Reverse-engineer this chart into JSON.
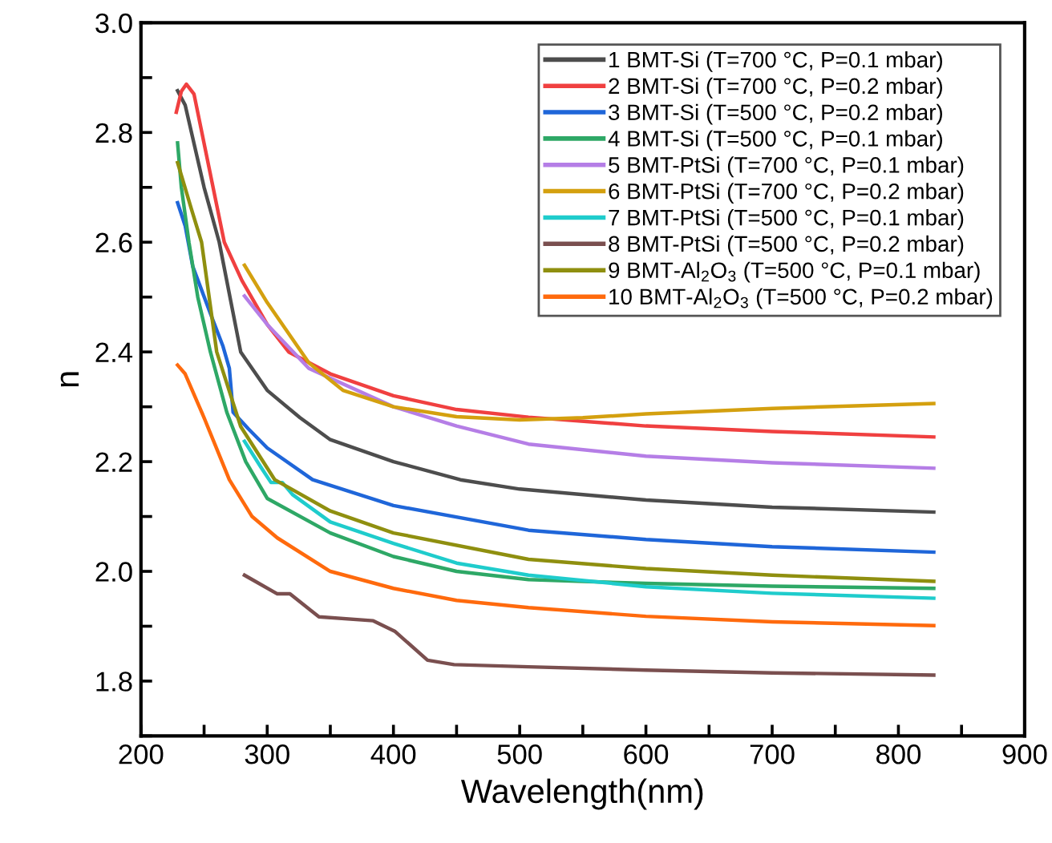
{
  "chart_data": {
    "type": "line",
    "xlabel": "Wavelength(nm)",
    "ylabel": "n",
    "xlim": [
      200,
      900
    ],
    "ylim": [
      1.7,
      3.0
    ],
    "xticks": [
      200,
      {
        "value": 250,
        "label": null
      },
      300,
      {
        "value": 350,
        "label": null
      },
      400,
      {
        "value": 450,
        "label": null
      },
      500,
      {
        "value": 550,
        "label": null
      },
      600,
      {
        "value": 650,
        "label": null
      },
      700,
      {
        "value": 750,
        "label": null
      },
      800,
      {
        "value": 850,
        "label": null
      },
      900
    ],
    "yticks": [
      {
        "value": 1.7,
        "label": null
      },
      1.8,
      {
        "value": 1.9,
        "label": null
      },
      {
        "value": 2.0,
        "label": "2.0"
      },
      {
        "value": 2.1,
        "label": null
      },
      2.2,
      {
        "value": 2.3,
        "label": null
      },
      2.4,
      {
        "value": 2.5,
        "label": null
      },
      2.6,
      {
        "value": 2.7,
        "label": null
      },
      2.8,
      {
        "value": 2.9,
        "label": null
      },
      {
        "value": 3.0,
        "label": "3.0"
      }
    ],
    "grid": false,
    "legend": "top right",
    "marker": "none",
    "line_style": "solid",
    "series": [
      {
        "name": "1 BMT-Si (T=700 °C, P=0.1 mbar)",
        "color": "#4d4d4d",
        "x": [
          229,
          235,
          250,
          262,
          279,
          300,
          326,
          350,
          400,
          453,
          500,
          600,
          700,
          828
        ],
        "values": [
          2.876,
          2.85,
          2.7,
          2.6,
          2.4,
          2.33,
          2.28,
          2.24,
          2.2,
          2.167,
          2.15,
          2.13,
          2.117,
          2.108
        ]
      },
      {
        "name": "2 BMT-Si (T=700 °C, P=0.2 mbar)",
        "color": "#f04040",
        "x": [
          228,
          232,
          236,
          242,
          266,
          280,
          300,
          317,
          350,
          400,
          450,
          507,
          600,
          700,
          828
        ],
        "values": [
          2.837,
          2.875,
          2.888,
          2.87,
          2.6,
          2.53,
          2.45,
          2.4,
          2.36,
          2.32,
          2.295,
          2.281,
          2.265,
          2.255,
          2.245
        ]
      },
      {
        "name": "3 BMT-Si (T=500 °C, P=0.2 mbar)",
        "color": "#1f66d9",
        "x": [
          229,
          235,
          241,
          255,
          265,
          270,
          273,
          285,
          300,
          336,
          400,
          507,
          600,
          700,
          828
        ],
        "values": [
          2.672,
          2.63,
          2.556,
          2.47,
          2.41,
          2.37,
          2.29,
          2.26,
          2.225,
          2.167,
          2.12,
          2.075,
          2.058,
          2.045,
          2.035
        ]
      },
      {
        "name": "4 BMT-Si (T=500 °C, P=0.1 mbar)",
        "color": "#2ea866",
        "x": [
          229,
          232,
          238,
          245,
          255,
          268,
          283,
          300,
          350,
          400,
          450,
          507,
          600,
          700,
          828
        ],
        "values": [
          2.781,
          2.7,
          2.6,
          2.5,
          2.4,
          2.29,
          2.2,
          2.133,
          2.07,
          2.027,
          2.0,
          1.985,
          1.978,
          1.973,
          1.969
        ]
      },
      {
        "name": "5 BMT-PtSi (T=700 °C, P=0.1 mbar)",
        "color": "#b57ee6",
        "x": [
          282,
          300,
          333,
          400,
          450,
          507,
          600,
          700,
          828
        ],
        "values": [
          2.502,
          2.45,
          2.37,
          2.3,
          2.265,
          2.232,
          2.21,
          2.198,
          2.188
        ]
      },
      {
        "name": "6 BMT-PtSi (T=700 °C, P=0.2 mbar)",
        "color": "#d4a00f",
        "x": [
          282,
          300,
          333,
          360,
          400,
          450,
          500,
          550,
          600,
          700,
          828
        ],
        "values": [
          2.558,
          2.49,
          2.38,
          2.33,
          2.3,
          2.282,
          2.276,
          2.28,
          2.287,
          2.297,
          2.306
        ]
      },
      {
        "name": "7 BMT-PtSi (T=500 °C, P=0.1 mbar)",
        "color": "#1fcccc",
        "x": [
          282,
          295,
          303,
          312,
          320,
          350,
          400,
          450,
          507,
          600,
          700,
          828
        ],
        "values": [
          2.237,
          2.19,
          2.162,
          2.162,
          2.14,
          2.09,
          2.051,
          2.015,
          1.993,
          1.972,
          1.96,
          1.951
        ]
      },
      {
        "name": "8 BMT-PtSi (T=500 °C, P=0.2 mbar)",
        "color": "#7a4f4f",
        "x": [
          282,
          308,
          318,
          341,
          384,
          401,
          427,
          448,
          507,
          600,
          700,
          828
        ],
        "values": [
          1.993,
          1.959,
          1.959,
          1.917,
          1.91,
          1.891,
          1.838,
          1.83,
          1.826,
          1.82,
          1.815,
          1.811
        ]
      },
      {
        "name": "9 BMT-Al$_{2}$O$_{3}$ (T=500 °C, P=0.1 mbar)",
        "color": "#8f8f0f",
        "x": [
          229,
          240,
          248,
          260,
          279,
          306,
          350,
          400,
          507,
          600,
          700,
          828
        ],
        "values": [
          2.745,
          2.66,
          2.6,
          2.4,
          2.264,
          2.167,
          2.11,
          2.07,
          2.022,
          2.005,
          1.993,
          1.982
        ]
      },
      {
        "name": "10 BMT-Al$_{2}$O$_{3}$ (T=500 °C, P=0.2 mbar)",
        "color": "#ff6a0d",
        "x": [
          229,
          235,
          250,
          270,
          288,
          308,
          350,
          400,
          450,
          507,
          600,
          700,
          828
        ],
        "values": [
          2.376,
          2.36,
          2.28,
          2.167,
          2.1,
          2.061,
          2.0,
          1.969,
          1.947,
          1.934,
          1.918,
          1.908,
          1.901
        ]
      }
    ]
  }
}
